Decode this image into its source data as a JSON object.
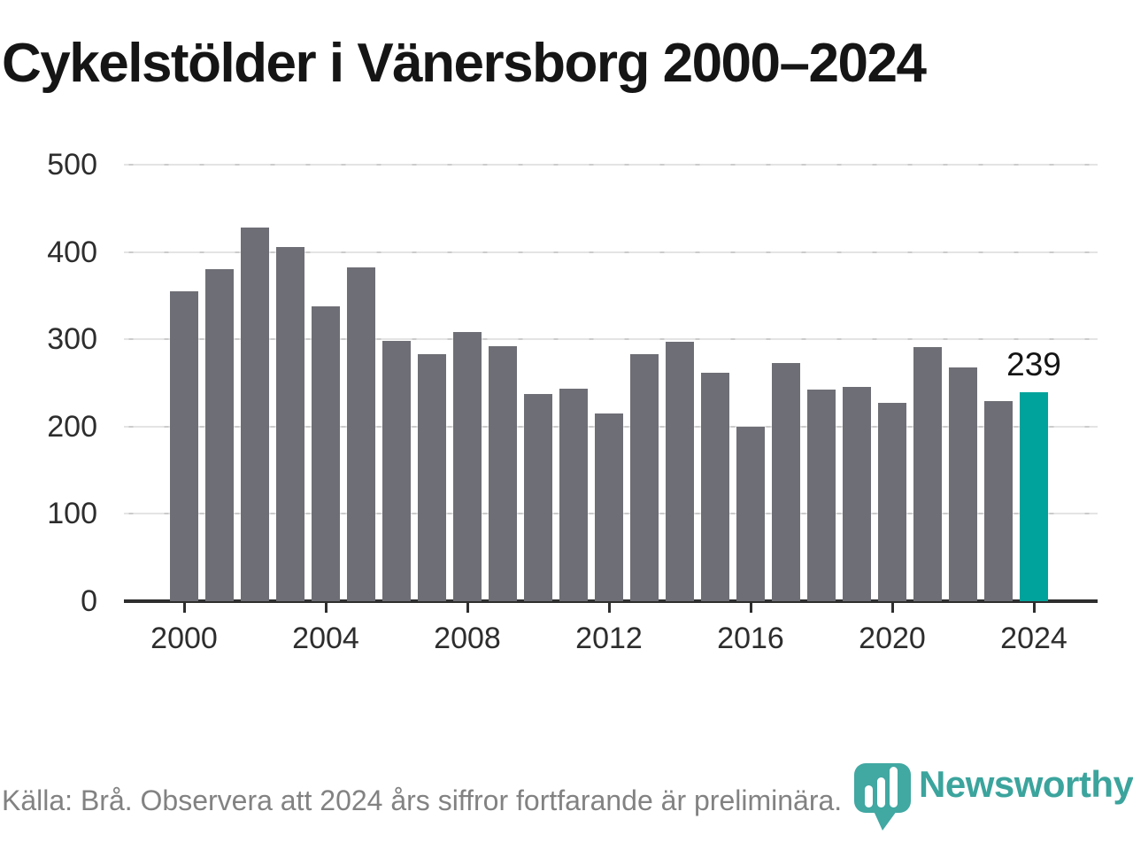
{
  "page": {
    "title": "Cykelstölder i Vänersborg 2000–2024"
  },
  "chart_data": {
    "type": "bar",
    "title": "Cykelstölder i Vänersborg 2000–2024",
    "x": [
      2000,
      2001,
      2002,
      2003,
      2004,
      2005,
      2006,
      2007,
      2008,
      2009,
      2010,
      2011,
      2012,
      2013,
      2014,
      2015,
      2016,
      2017,
      2018,
      2019,
      2020,
      2021,
      2022,
      2023,
      2024
    ],
    "values": [
      355,
      380,
      428,
      406,
      338,
      382,
      298,
      283,
      308,
      292,
      237,
      243,
      215,
      283,
      297,
      262,
      200,
      273,
      242,
      245,
      227,
      291,
      268,
      229,
      239
    ],
    "xlabel": "",
    "ylabel": "",
    "ylim": [
      0,
      500
    ],
    "yticks": [
      0,
      100,
      200,
      300,
      400,
      500
    ],
    "xticks": [
      2000,
      2004,
      2008,
      2012,
      2016,
      2020,
      2024
    ],
    "grid": "horizontal",
    "legend": "none",
    "highlight": {
      "year": 2024,
      "value": 239,
      "label": "239"
    },
    "colors": {
      "bar": "#6e6e76",
      "highlight_bar": "#00a39b"
    }
  },
  "footer": {
    "source": "Källa: Brå. Observera att 2024 års siffror fortfarande är preliminära.",
    "brand": "Newsworthy",
    "brand_color": "#3ba49d",
    "logo_color": "#41a8a2"
  }
}
